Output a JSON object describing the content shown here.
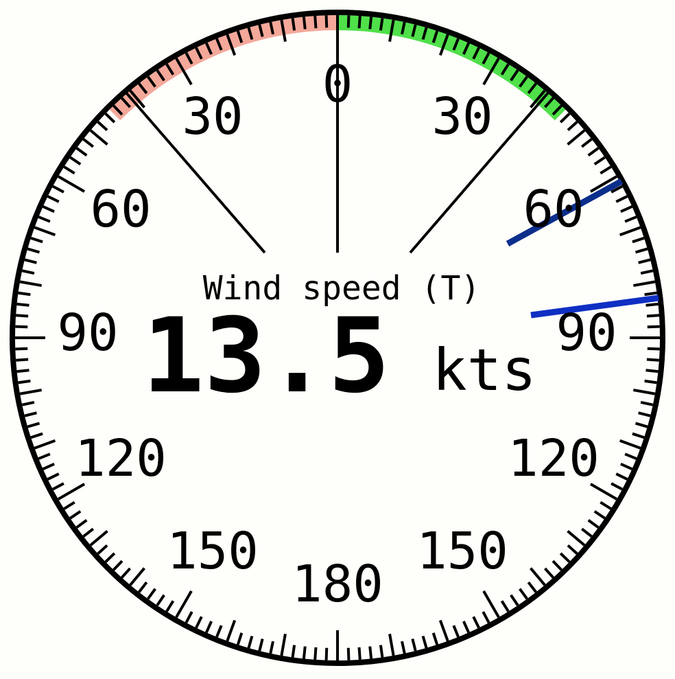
{
  "gauge": {
    "caption": "Wind speed (T)",
    "value": "13.5",
    "unit": "kts",
    "labels": {
      "top": "0",
      "left_30": "30",
      "right_30": "30",
      "left_60": "60",
      "right_60": "60",
      "left_90": "90",
      "right_90": "90",
      "left_120": "120",
      "right_120": "120",
      "left_150": "150",
      "right_150": "150",
      "bottom": "180"
    },
    "port_sector_deg": [
      -45,
      0
    ],
    "starboard_sector_deg": [
      0,
      45
    ],
    "needles_deg": [
      63,
      84
    ],
    "colors": {
      "background": "#fefefa",
      "port": "#f4a89a",
      "starboard": "#4fe04a",
      "needle_primary": "#0c2f8c",
      "needle_secondary": "#0f2fc4",
      "ink": "#000000"
    }
  }
}
